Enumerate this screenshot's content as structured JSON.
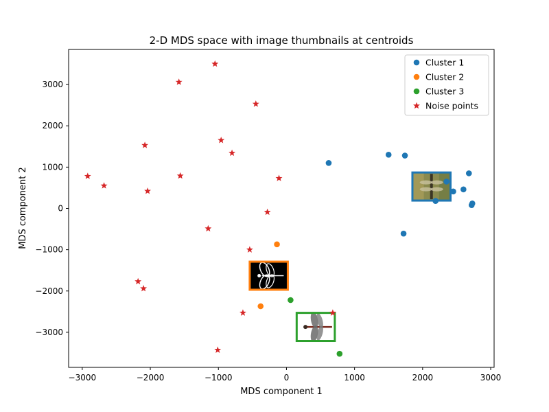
{
  "chart_data": {
    "type": "scatter",
    "title": "2-D MDS space with image thumbnails at centroids",
    "xlabel": "MDS component 1",
    "ylabel": "MDS component 2",
    "xlim": [
      -3200,
      3050
    ],
    "ylim": [
      -3850,
      3850
    ],
    "xticks": [
      -3000,
      -2000,
      -1000,
      0,
      1000,
      2000,
      3000
    ],
    "yticks": [
      -3000,
      -2000,
      -1000,
      0,
      1000,
      2000,
      3000
    ],
    "grid": false,
    "legend_placement": "top-right",
    "series": [
      {
        "name": "Cluster 1",
        "marker": "circle",
        "color": "#1f77b4",
        "points": [
          [
            620,
            1100
          ],
          [
            1500,
            1300
          ],
          [
            1740,
            1280
          ],
          [
            2350,
            650
          ],
          [
            2190,
            180
          ],
          [
            2450,
            410
          ],
          [
            2600,
            460
          ],
          [
            2680,
            850
          ],
          [
            2720,
            80
          ],
          [
            2730,
            120
          ],
          [
            1720,
            -610
          ]
        ]
      },
      {
        "name": "Cluster 2",
        "marker": "circle",
        "color": "#ff7f0e",
        "points": [
          [
            -140,
            -870
          ],
          [
            -380,
            -2370
          ]
        ]
      },
      {
        "name": "Cluster 3",
        "marker": "circle",
        "color": "#2ca02c",
        "points": [
          [
            60,
            -2220
          ],
          [
            780,
            -3520
          ]
        ]
      },
      {
        "name": "Noise points",
        "marker": "star",
        "color": "#d62728",
        "points": [
          [
            -1050,
            3500
          ],
          [
            -1580,
            3060
          ],
          [
            -450,
            2530
          ],
          [
            -2080,
            1530
          ],
          [
            -960,
            1650
          ],
          [
            -800,
            1340
          ],
          [
            -2920,
            780
          ],
          [
            -2680,
            550
          ],
          [
            -1560,
            790
          ],
          [
            -2040,
            420
          ],
          [
            -110,
            730
          ],
          [
            -280,
            -90
          ],
          [
            -1150,
            -490
          ],
          [
            -540,
            -1000
          ],
          [
            -2180,
            -1770
          ],
          [
            -2100,
            -1940
          ],
          [
            -640,
            -2530
          ],
          [
            680,
            -2530
          ],
          [
            -1010,
            -3430
          ]
        ]
      }
    ],
    "thumbnails": [
      {
        "cluster": "Cluster 1",
        "center": [
          2130,
          530
        ],
        "half_size": [
          280,
          340
        ],
        "border_color": "#1f77b4",
        "content": "dragonfly-photo"
      },
      {
        "cluster": "Cluster 2",
        "center": [
          -260,
          -1630
        ],
        "half_size": [
          280,
          340
        ],
        "border_color": "#ff7f0e",
        "content": "dragonfly-sketch"
      },
      {
        "cluster": "Cluster 3",
        "center": [
          430,
          -2870
        ],
        "half_size": [
          280,
          340
        ],
        "border_color": "#2ca02c",
        "content": "dragonfly-specimen"
      }
    ]
  }
}
